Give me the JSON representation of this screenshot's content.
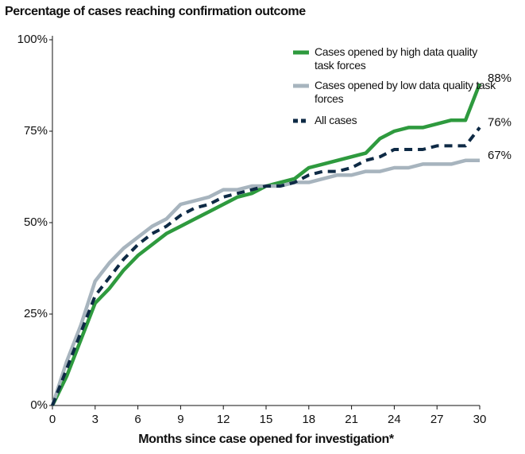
{
  "chart_data": {
    "type": "line",
    "title": "Percentage of cases reaching confirmation outcome",
    "x_label": "Months since case opened for investigation*",
    "x": [
      0,
      1,
      2,
      3,
      4,
      5,
      6,
      7,
      8,
      9,
      10,
      11,
      12,
      13,
      14,
      15,
      16,
      17,
      18,
      19,
      20,
      21,
      22,
      23,
      24,
      25,
      26,
      27,
      28,
      29,
      30
    ],
    "series": [
      {
        "name": "Cases opened by high data quality task forces",
        "color": "#2e9a3e",
        "dash": false,
        "values": [
          0,
          8,
          18,
          28,
          32,
          37,
          41,
          44,
          47,
          49,
          51,
          53,
          55,
          57,
          58,
          60,
          61,
          62,
          65,
          66,
          67,
          68,
          69,
          73,
          75,
          76,
          76,
          77,
          78,
          78,
          88
        ],
        "value_labels": [
          null,
          null,
          null,
          null,
          null,
          null,
          null,
          null,
          null,
          null,
          null,
          null,
          null,
          null,
          null,
          null,
          null,
          null,
          null,
          null,
          null,
          null,
          null,
          null,
          null,
          null,
          null,
          null,
          null,
          null,
          "88%"
        ]
      },
      {
        "name": "Cases opened by low data quality task forces",
        "color": "#a7b4be",
        "dash": false,
        "values": [
          0,
          12,
          22,
          34,
          39,
          43,
          46,
          49,
          51,
          55,
          56,
          57,
          59,
          59,
          60,
          60,
          60,
          61,
          61,
          62,
          63,
          63,
          64,
          64,
          65,
          65,
          66,
          66,
          66,
          67,
          67
        ],
        "value_labels": [
          null,
          null,
          null,
          null,
          null,
          null,
          null,
          null,
          null,
          null,
          null,
          null,
          null,
          null,
          null,
          null,
          null,
          null,
          null,
          null,
          null,
          null,
          null,
          null,
          null,
          null,
          null,
          null,
          null,
          null,
          "67%"
        ]
      },
      {
        "name": "All cases",
        "color": "#0e2a45",
        "dash": true,
        "values": [
          0,
          10,
          20,
          30,
          35,
          40,
          44,
          47,
          49,
          52,
          54,
          55,
          57,
          58,
          59,
          60,
          60,
          61,
          63,
          64,
          64,
          65,
          67,
          68,
          70,
          70,
          70,
          71,
          71,
          71,
          76
        ],
        "value_labels": [
          null,
          null,
          null,
          null,
          null,
          null,
          null,
          null,
          null,
          null,
          null,
          null,
          null,
          null,
          null,
          null,
          null,
          null,
          null,
          null,
          null,
          null,
          null,
          null,
          null,
          null,
          null,
          null,
          null,
          null,
          "76%"
        ]
      }
    ],
    "xlim": [
      0,
      30
    ],
    "xticks": [
      0,
      3,
      6,
      9,
      12,
      15,
      18,
      21,
      24,
      27,
      30
    ],
    "ylim": [
      0,
      100
    ],
    "yticks": [
      {
        "value": 0,
        "label": "0%"
      },
      {
        "value": 25,
        "label": "25%"
      },
      {
        "value": 50,
        "label": "50%"
      },
      {
        "value": 75,
        "label": "75%"
      },
      {
        "value": 100,
        "label": "100%"
      }
    ],
    "grid": false,
    "legend": "top-right"
  }
}
